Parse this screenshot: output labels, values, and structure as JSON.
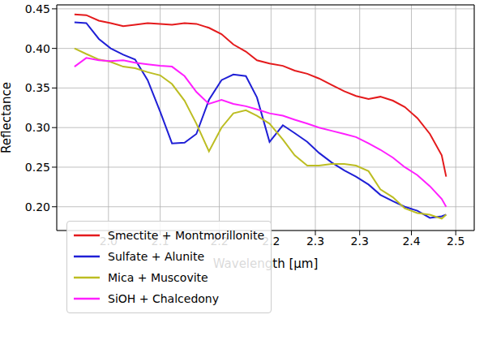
{
  "chart_data": {
    "type": "line",
    "x_label": "Wavelength [µm]",
    "y_label": "Reflectance",
    "x": [
      1.954,
      1.97,
      1.987,
      2.003,
      2.02,
      2.036,
      2.053,
      2.07,
      2.086,
      2.103,
      2.119,
      2.136,
      2.153,
      2.169,
      2.186,
      2.201,
      2.218,
      2.236,
      2.252,
      2.269,
      2.285,
      2.302,
      2.319,
      2.335,
      2.352,
      2.368,
      2.385,
      2.401,
      2.418,
      2.435,
      2.451,
      2.457
    ],
    "series": [
      {
        "name": "Smectite + Montmorillonite",
        "color": "#e41a1c",
        "values": [
          0.443,
          0.442,
          0.435,
          0.432,
          0.428,
          0.43,
          0.432,
          0.431,
          0.43,
          0.432,
          0.431,
          0.426,
          0.418,
          0.405,
          0.396,
          0.385,
          0.381,
          0.378,
          0.372,
          0.368,
          0.362,
          0.354,
          0.346,
          0.34,
          0.336,
          0.339,
          0.334,
          0.326,
          0.312,
          0.292,
          0.265,
          0.238
        ]
      },
      {
        "name": "Sulfate + Alunite",
        "color": "#1f1fd6",
        "values": [
          0.433,
          0.432,
          0.412,
          0.4,
          0.392,
          0.386,
          0.36,
          0.32,
          0.28,
          0.281,
          0.292,
          0.335,
          0.36,
          0.367,
          0.365,
          0.338,
          0.282,
          0.303,
          0.293,
          0.282,
          0.268,
          0.256,
          0.246,
          0.238,
          0.228,
          0.215,
          0.207,
          0.2,
          0.195,
          0.186,
          0.188,
          0.19
        ]
      },
      {
        "name": "Mica + Muscovite",
        "color": "#bcbd22",
        "values": [
          0.4,
          0.393,
          0.386,
          0.383,
          0.377,
          0.375,
          0.37,
          0.366,
          0.355,
          0.334,
          0.305,
          0.27,
          0.3,
          0.318,
          0.322,
          0.315,
          0.305,
          0.285,
          0.265,
          0.252,
          0.252,
          0.254,
          0.254,
          0.252,
          0.245,
          0.222,
          0.212,
          0.198,
          0.192,
          0.19,
          0.185,
          0.19
        ]
      },
      {
        "name": "SiOH + Chalcedony",
        "color": "#ff1fff",
        "values": [
          0.377,
          0.388,
          0.385,
          0.384,
          0.385,
          0.382,
          0.38,
          0.378,
          0.377,
          0.365,
          0.345,
          0.33,
          0.335,
          0.33,
          0.327,
          0.323,
          0.318,
          0.315,
          0.31,
          0.305,
          0.3,
          0.296,
          0.292,
          0.288,
          0.28,
          0.272,
          0.262,
          0.25,
          0.24,
          0.226,
          0.21,
          0.2
        ]
      }
    ],
    "xlim": [
      1.93,
      2.495
    ],
    "xticks": [
      {
        "value": 2.0,
        "label": "2.0"
      },
      {
        "value": 2.07,
        "label": "2.1"
      },
      {
        "value": 2.15,
        "label": "2.2"
      },
      {
        "value": 2.22,
        "label": "2.2"
      },
      {
        "value": 2.28,
        "label": "2.3"
      },
      {
        "value": 2.34,
        "label": "2.3"
      },
      {
        "value": 2.41,
        "label": "2.4"
      },
      {
        "value": 2.47,
        "label": "2.5"
      }
    ],
    "ylim": [
      0.17,
      0.455
    ],
    "yticks": [
      {
        "value": 0.2,
        "label": "0.20"
      },
      {
        "value": 0.25,
        "label": "0.25"
      },
      {
        "value": 0.3,
        "label": "0.30"
      },
      {
        "value": 0.35,
        "label": "0.35"
      },
      {
        "value": 0.4,
        "label": "0.40"
      },
      {
        "value": 0.45,
        "label": "0.45"
      }
    ],
    "grid": true,
    "legend": "lower left"
  }
}
